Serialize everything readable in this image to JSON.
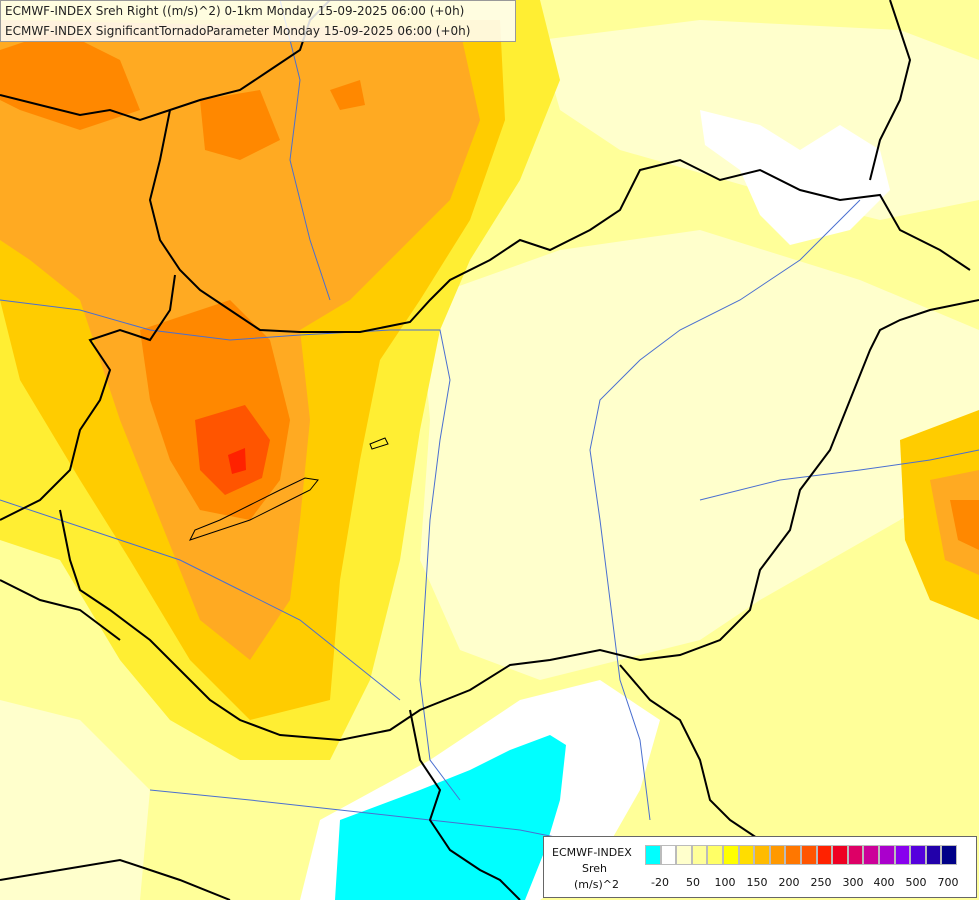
{
  "title": {
    "line1": "ECMWF-INDEX Sreh Right ((m/s)^2) 0-1km Monday 15-09-2025 06:00 (+0h)",
    "line2": "ECMWF-INDEX SignificantTornadoParameter Monday 15-09-2025 06:00 (+0h)"
  },
  "legend": {
    "source": "ECMWF-INDEX",
    "variable": "Sreh",
    "unit": "(m/s)^2",
    "colors": [
      "#00ffff",
      "#ffffff",
      "#ffffcc",
      "#ffff99",
      "#ffff66",
      "#ffff00",
      "#ffdd00",
      "#ffbb00",
      "#ff9900",
      "#ff7700",
      "#ff5500",
      "#ff2200",
      "#ee0022",
      "#dd0066",
      "#cc0099",
      "#aa00cc",
      "#8800ee",
      "#5500dd",
      "#2200aa",
      "#000088"
    ],
    "ticks": [
      "-20",
      "50",
      "100",
      "150",
      "200",
      "250",
      "300",
      "400",
      "500",
      "700"
    ]
  },
  "palette": {
    "background": "#ffff99",
    "light": "#ffffcc",
    "white": "#ffffff",
    "cyan": "#00ffff",
    "yellow": "#ffee33",
    "gold": "#ffcc00",
    "orange": "#ffaa22",
    "dark_orange": "#ff8800",
    "red_orange": "#ff5500",
    "red": "#ff2200",
    "border": "#000000",
    "river": "#4a6fd0"
  }
}
